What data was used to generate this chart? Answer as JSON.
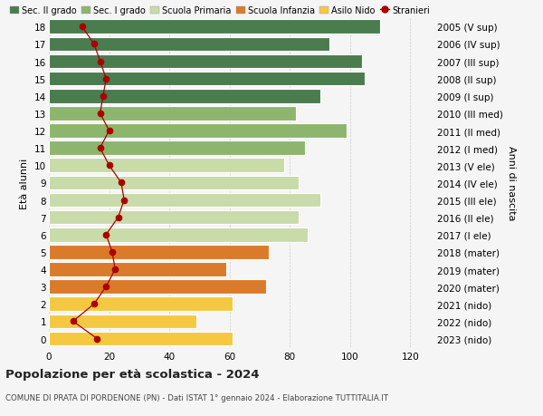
{
  "ages": [
    0,
    1,
    2,
    3,
    4,
    5,
    6,
    7,
    8,
    9,
    10,
    11,
    12,
    13,
    14,
    15,
    16,
    17,
    18
  ],
  "right_labels": [
    "2023 (nido)",
    "2022 (nido)",
    "2021 (nido)",
    "2020 (mater)",
    "2019 (mater)",
    "2018 (mater)",
    "2017 (I ele)",
    "2016 (II ele)",
    "2015 (III ele)",
    "2014 (IV ele)",
    "2013 (V ele)",
    "2012 (I med)",
    "2011 (II med)",
    "2010 (III med)",
    "2009 (I sup)",
    "2008 (II sup)",
    "2007 (III sup)",
    "2006 (IV sup)",
    "2005 (V sup)"
  ],
  "bar_values": [
    61,
    49,
    61,
    72,
    59,
    73,
    86,
    83,
    90,
    83,
    78,
    85,
    99,
    82,
    90,
    105,
    104,
    93,
    110
  ],
  "bar_colors": [
    "#f5c842",
    "#f5c842",
    "#f5c842",
    "#d97b2a",
    "#d97b2a",
    "#d97b2a",
    "#c8dba8",
    "#c8dba8",
    "#c8dba8",
    "#c8dba8",
    "#c8dba8",
    "#8db56e",
    "#8db56e",
    "#8db56e",
    "#4a7c4e",
    "#4a7c4e",
    "#4a7c4e",
    "#4a7c4e",
    "#4a7c4e"
  ],
  "stranieri_values": [
    16,
    8,
    15,
    19,
    22,
    21,
    19,
    23,
    25,
    24,
    20,
    17,
    20,
    17,
    18,
    19,
    17,
    15,
    11
  ],
  "title": "Popolazione per età scolastica - 2024",
  "subtitle": "COMUNE DI PRATA DI PORDENONE (PN) - Dati ISTAT 1° gennaio 2024 - Elaborazione TUTTITALIA.IT",
  "xticks": [
    0,
    20,
    40,
    60,
    80,
    100,
    120
  ],
  "ylabel_left": "Età alunni",
  "ylabel_right": "Anni di nascita",
  "legend_entries": [
    "Sec. II grado",
    "Sec. I grado",
    "Scuola Primaria",
    "Scuola Infanzia",
    "Asilo Nido",
    "Stranieri"
  ],
  "legend_colors": [
    "#4a7c4e",
    "#8db56e",
    "#c8dba8",
    "#d97b2a",
    "#f5c842",
    "#cc0000"
  ],
  "stranieri_line_color": "#aa0000",
  "background_color": "#f5f5f5",
  "bar_edge_color": "#ffffff",
  "grid_color": "#cccccc"
}
